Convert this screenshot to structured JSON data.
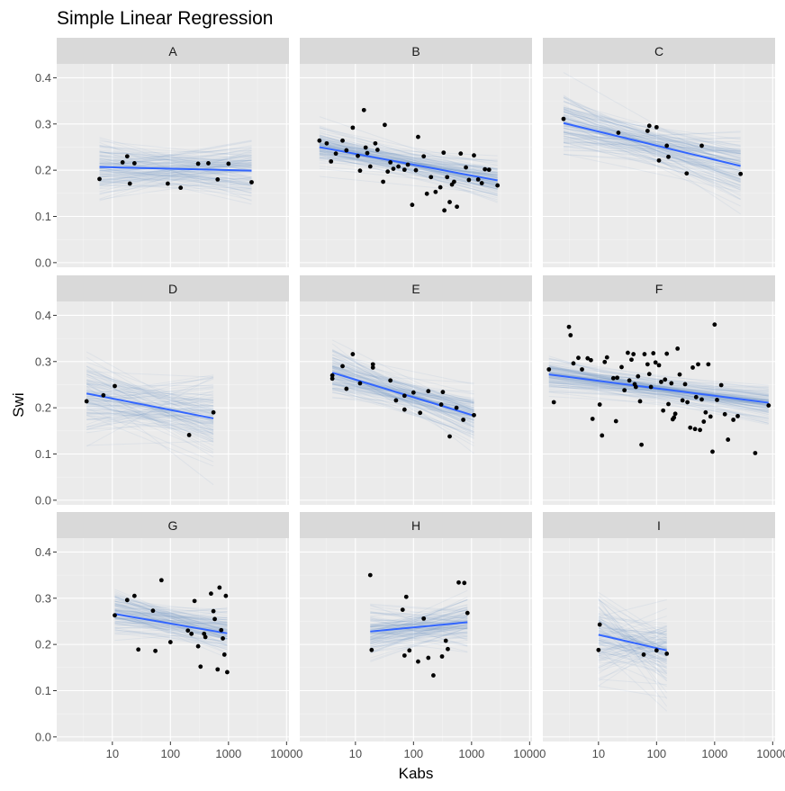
{
  "chart_data": {
    "type": "scatter",
    "title": "Simple Linear Regression",
    "xlabel": "Kabs",
    "ylabel": "Swi",
    "x_scale": "log10",
    "x_range": [
      1.1,
      11000
    ],
    "y_range": [
      -0.01,
      0.43
    ],
    "x_ticks": [
      10,
      100,
      1000,
      10000
    ],
    "x_tick_labels": [
      "10",
      "100",
      "1000",
      "10000"
    ],
    "y_ticks": [
      0.0,
      0.1,
      0.2,
      0.3,
      0.4
    ],
    "y_tick_labels": [
      "0.0",
      "0.1",
      "0.2",
      "0.3",
      "0.4"
    ],
    "colors": {
      "fit_line": "#3366ff",
      "bootstrap_lines": "#6f8fc4",
      "points": "#000000",
      "panel": "#ebebeb",
      "strip": "#d9d9d9"
    },
    "facets": [
      {
        "label": "A",
        "points": [
          [
            6,
            0.181
          ],
          [
            15,
            0.217
          ],
          [
            18,
            0.23
          ],
          [
            20,
            0.171
          ],
          [
            24,
            0.215
          ],
          [
            90,
            0.171
          ],
          [
            150,
            0.162
          ],
          [
            300,
            0.214
          ],
          [
            450,
            0.215
          ],
          [
            650,
            0.18
          ],
          [
            1000,
            0.214
          ],
          [
            2500,
            0.174
          ]
        ],
        "fit": {
          "x_start": 6,
          "x_end": 2500,
          "y_start": 0.207,
          "y_end": 0.199
        }
      },
      {
        "label": "B",
        "points": [
          [
            2.4,
            0.264
          ],
          [
            3.2,
            0.258
          ],
          [
            3.8,
            0.219
          ],
          [
            4.6,
            0.236
          ],
          [
            6,
            0.264
          ],
          [
            7,
            0.243
          ],
          [
            9,
            0.292
          ],
          [
            11,
            0.231
          ],
          [
            12,
            0.199
          ],
          [
            14,
            0.33
          ],
          [
            15,
            0.249
          ],
          [
            16,
            0.237
          ],
          [
            18,
            0.208
          ],
          [
            22,
            0.258
          ],
          [
            24,
            0.244
          ],
          [
            30,
            0.175
          ],
          [
            32,
            0.298
          ],
          [
            36,
            0.197
          ],
          [
            40,
            0.217
          ],
          [
            45,
            0.203
          ],
          [
            55,
            0.208
          ],
          [
            70,
            0.201
          ],
          [
            80,
            0.212
          ],
          [
            95,
            0.125
          ],
          [
            110,
            0.2
          ],
          [
            120,
            0.272
          ],
          [
            150,
            0.23
          ],
          [
            170,
            0.149
          ],
          [
            200,
            0.185
          ],
          [
            240,
            0.153
          ],
          [
            290,
            0.163
          ],
          [
            330,
            0.238
          ],
          [
            340,
            0.113
          ],
          [
            380,
            0.185
          ],
          [
            420,
            0.131
          ],
          [
            460,
            0.169
          ],
          [
            500,
            0.175
          ],
          [
            560,
            0.121
          ],
          [
            650,
            0.236
          ],
          [
            800,
            0.206
          ],
          [
            900,
            0.179
          ],
          [
            1100,
            0.232
          ],
          [
            1300,
            0.18
          ],
          [
            1500,
            0.172
          ],
          [
            1700,
            0.202
          ],
          [
            2000,
            0.201
          ],
          [
            2800,
            0.167
          ]
        ],
        "fit": {
          "x_start": 2.4,
          "x_end": 2800,
          "y_start": 0.25,
          "y_end": 0.178
        }
      },
      {
        "label": "C",
        "points": [
          [
            2.5,
            0.311
          ],
          [
            22,
            0.281
          ],
          [
            70,
            0.285
          ],
          [
            75,
            0.296
          ],
          [
            100,
            0.293
          ],
          [
            110,
            0.221
          ],
          [
            150,
            0.253
          ],
          [
            160,
            0.229
          ],
          [
            330,
            0.193
          ],
          [
            600,
            0.253
          ],
          [
            2800,
            0.192
          ]
        ],
        "fit": {
          "x_start": 2.5,
          "x_end": 2800,
          "y_start": 0.302,
          "y_end": 0.209
        }
      },
      {
        "label": "D",
        "points": [
          [
            3.6,
            0.214
          ],
          [
            7,
            0.227
          ],
          [
            11,
            0.247
          ],
          [
            210,
            0.141
          ],
          [
            550,
            0.19
          ]
        ],
        "fit": {
          "x_start": 3.6,
          "x_end": 550,
          "y_start": 0.231,
          "y_end": 0.177
        }
      },
      {
        "label": "E",
        "points": [
          [
            4,
            0.263
          ],
          [
            4,
            0.27
          ],
          [
            6,
            0.29
          ],
          [
            7,
            0.241
          ],
          [
            9,
            0.316
          ],
          [
            12,
            0.253
          ],
          [
            20,
            0.287
          ],
          [
            20,
            0.294
          ],
          [
            40,
            0.259
          ],
          [
            50,
            0.216
          ],
          [
            70,
            0.226
          ],
          [
            70,
            0.196
          ],
          [
            100,
            0.233
          ],
          [
            130,
            0.189
          ],
          [
            180,
            0.236
          ],
          [
            300,
            0.207
          ],
          [
            320,
            0.234
          ],
          [
            420,
            0.138
          ],
          [
            550,
            0.2
          ],
          [
            720,
            0.174
          ],
          [
            1100,
            0.184
          ]
        ],
        "fit": {
          "x_start": 4,
          "x_end": 1100,
          "y_start": 0.276,
          "y_end": 0.183
        }
      },
      {
        "label": "F",
        "points": [
          [
            1.4,
            0.283
          ],
          [
            1.7,
            0.212
          ],
          [
            3.1,
            0.375
          ],
          [
            3.3,
            0.357
          ],
          [
            3.7,
            0.296
          ],
          [
            4.5,
            0.308
          ],
          [
            5.2,
            0.283
          ],
          [
            6.5,
            0.307
          ],
          [
            7.4,
            0.303
          ],
          [
            7.9,
            0.176
          ],
          [
            10.5,
            0.207
          ],
          [
            11.5,
            0.14
          ],
          [
            12.8,
            0.299
          ],
          [
            14,
            0.309
          ],
          [
            18,
            0.264
          ],
          [
            20,
            0.171
          ],
          [
            21,
            0.265
          ],
          [
            25,
            0.288
          ],
          [
            28,
            0.238
          ],
          [
            32,
            0.319
          ],
          [
            34,
            0.259
          ],
          [
            37,
            0.304
          ],
          [
            40,
            0.316
          ],
          [
            42,
            0.251
          ],
          [
            44,
            0.245
          ],
          [
            48,
            0.268
          ],
          [
            52,
            0.214
          ],
          [
            55,
            0.12
          ],
          [
            62,
            0.316
          ],
          [
            70,
            0.294
          ],
          [
            75,
            0.273
          ],
          [
            80,
            0.245
          ],
          [
            88,
            0.318
          ],
          [
            96,
            0.298
          ],
          [
            110,
            0.292
          ],
          [
            120,
            0.256
          ],
          [
            130,
            0.194
          ],
          [
            140,
            0.261
          ],
          [
            150,
            0.317
          ],
          [
            160,
            0.208
          ],
          [
            180,
            0.253
          ],
          [
            190,
            0.175
          ],
          [
            200,
            0.179
          ],
          [
            210,
            0.187
          ],
          [
            230,
            0.328
          ],
          [
            250,
            0.272
          ],
          [
            280,
            0.216
          ],
          [
            310,
            0.251
          ],
          [
            340,
            0.212
          ],
          [
            380,
            0.157
          ],
          [
            420,
            0.287
          ],
          [
            460,
            0.154
          ],
          [
            480,
            0.223
          ],
          [
            520,
            0.294
          ],
          [
            560,
            0.152
          ],
          [
            600,
            0.218
          ],
          [
            650,
            0.17
          ],
          [
            700,
            0.19
          ],
          [
            780,
            0.294
          ],
          [
            850,
            0.181
          ],
          [
            920,
            0.105
          ],
          [
            1000,
            0.38
          ],
          [
            1100,
            0.217
          ],
          [
            1300,
            0.249
          ],
          [
            1500,
            0.186
          ],
          [
            1700,
            0.131
          ],
          [
            2100,
            0.174
          ],
          [
            2500,
            0.182
          ],
          [
            5000,
            0.102
          ],
          [
            8500,
            0.205
          ]
        ],
        "fit": {
          "x_start": 1.4,
          "x_end": 8500,
          "y_start": 0.272,
          "y_end": 0.211
        }
      },
      {
        "label": "G",
        "points": [
          [
            11,
            0.263
          ],
          [
            18,
            0.296
          ],
          [
            24,
            0.305
          ],
          [
            28,
            0.189
          ],
          [
            50,
            0.273
          ],
          [
            55,
            0.186
          ],
          [
            70,
            0.339
          ],
          [
            100,
            0.205
          ],
          [
            200,
            0.23
          ],
          [
            230,
            0.223
          ],
          [
            260,
            0.294
          ],
          [
            300,
            0.196
          ],
          [
            330,
            0.152
          ],
          [
            380,
            0.223
          ],
          [
            400,
            0.216
          ],
          [
            500,
            0.31
          ],
          [
            550,
            0.272
          ],
          [
            580,
            0.255
          ],
          [
            650,
            0.146
          ],
          [
            700,
            0.323
          ],
          [
            750,
            0.231
          ],
          [
            800,
            0.213
          ],
          [
            850,
            0.178
          ],
          [
            900,
            0.305
          ],
          [
            950,
            0.14
          ]
        ],
        "fit": {
          "x_start": 11,
          "x_end": 950,
          "y_start": 0.266,
          "y_end": 0.224
        }
      },
      {
        "label": "H",
        "points": [
          [
            18,
            0.35
          ],
          [
            19,
            0.188
          ],
          [
            65,
            0.275
          ],
          [
            70,
            0.176
          ],
          [
            75,
            0.303
          ],
          [
            85,
            0.187
          ],
          [
            120,
            0.163
          ],
          [
            150,
            0.256
          ],
          [
            180,
            0.171
          ],
          [
            220,
            0.133
          ],
          [
            310,
            0.174
          ],
          [
            360,
            0.208
          ],
          [
            390,
            0.19
          ],
          [
            600,
            0.334
          ],
          [
            750,
            0.333
          ],
          [
            850,
            0.268
          ]
        ],
        "fit": {
          "x_start": 18,
          "x_end": 850,
          "y_start": 0.228,
          "y_end": 0.248
        }
      },
      {
        "label": "I",
        "points": [
          [
            10,
            0.188
          ],
          [
            10.5,
            0.243
          ],
          [
            60,
            0.178
          ],
          [
            100,
            0.187
          ],
          [
            150,
            0.18
          ]
        ],
        "fit": {
          "x_start": 10,
          "x_end": 150,
          "y_start": 0.221,
          "y_end": 0.187
        }
      }
    ]
  }
}
